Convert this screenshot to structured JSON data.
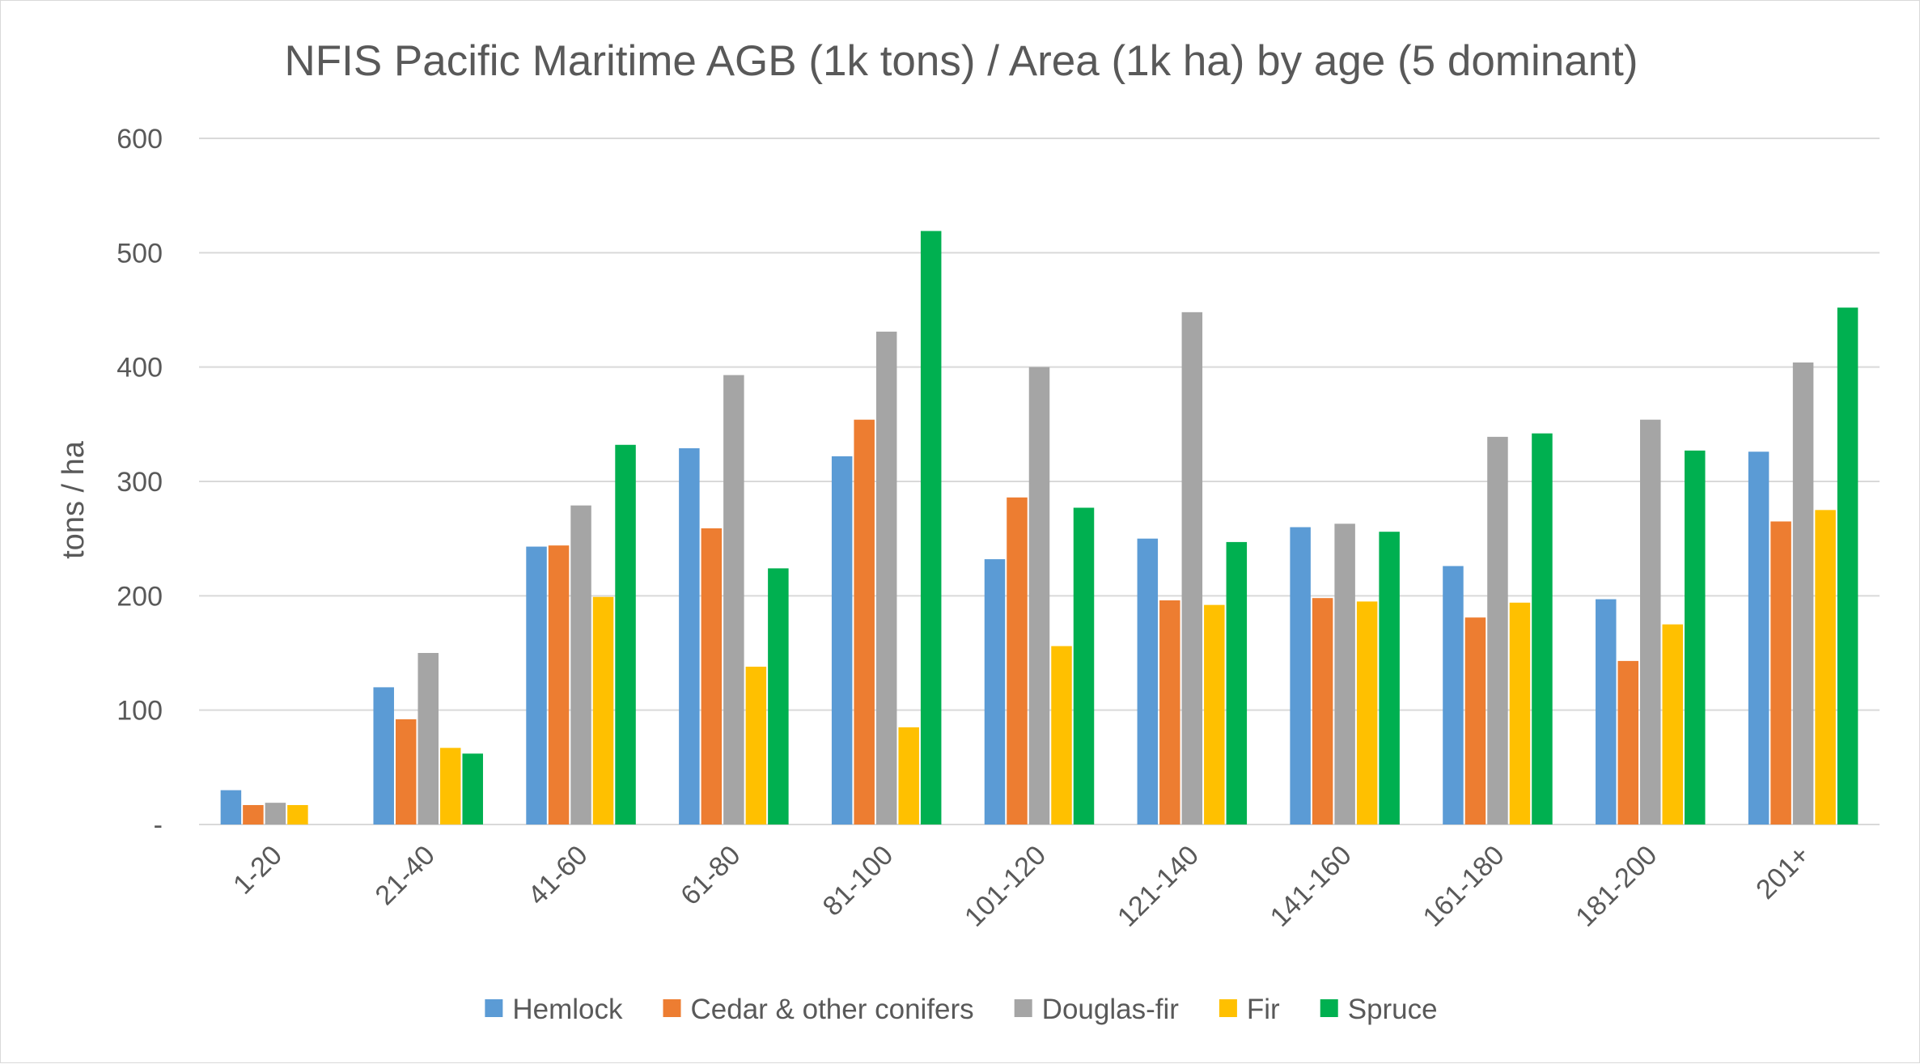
{
  "chart_data": {
    "type": "bar",
    "title": "NFIS Pacific Maritime AGB (1k tons) / Area (1k ha) by age (5 dominant)",
    "xlabel": "",
    "ylabel": "tons / ha",
    "ylim": [
      0,
      600
    ],
    "yticks": [
      {
        "value": 0,
        "label": "-"
      },
      {
        "value": 100,
        "label": "100"
      },
      {
        "value": 200,
        "label": "200"
      },
      {
        "value": 300,
        "label": "300"
      },
      {
        "value": 400,
        "label": "400"
      },
      {
        "value": 500,
        "label": "500"
      },
      {
        "value": 600,
        "label": "600"
      }
    ],
    "grid": true,
    "legend": "bottom",
    "categories": [
      "1-20",
      "21-40",
      "41-60",
      "61-80",
      "81-100",
      "101-120",
      "121-140",
      "141-160",
      "161-180",
      "181-200",
      "201+"
    ],
    "series": [
      {
        "name": "Hemlock",
        "color": "#5b9bd5",
        "values": [
          30,
          120,
          243,
          329,
          322,
          232,
          250,
          260,
          226,
          197,
          326
        ]
      },
      {
        "name": "Cedar & other conifers",
        "color": "#ed7d31",
        "values": [
          17,
          92,
          244,
          259,
          354,
          286,
          196,
          198,
          181,
          143,
          265
        ]
      },
      {
        "name": "Douglas-fir",
        "color": "#a5a5a5",
        "values": [
          19,
          150,
          279,
          393,
          431,
          400,
          448,
          263,
          339,
          354,
          404
        ]
      },
      {
        "name": "Fir",
        "color": "#ffc000",
        "values": [
          17,
          67,
          199,
          138,
          85,
          156,
          192,
          195,
          194,
          175,
          275
        ]
      },
      {
        "name": "Spruce",
        "color": "#00b050",
        "values": [
          null,
          62,
          332,
          224,
          519,
          277,
          247,
          256,
          342,
          327,
          452
        ]
      }
    ]
  }
}
